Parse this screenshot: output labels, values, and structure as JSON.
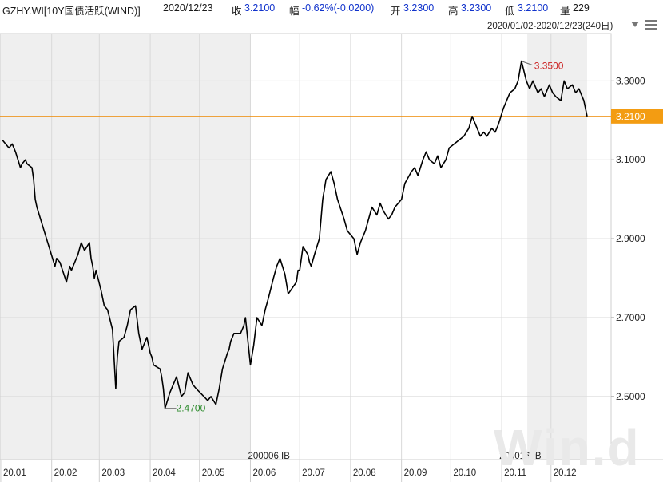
{
  "header": {
    "code": "GZHY.WI[10Y国债活跃(WIND)]",
    "date": "2020/12/23",
    "close_label": "收",
    "close_value": "3.2100",
    "change_label": "幅",
    "change_value": "-0.62%(-0.0200)",
    "open_label": "开",
    "open_value": "3.2300",
    "high_label": "高",
    "high_value": "3.2300",
    "low_label": "低",
    "low_value": "3.2100",
    "volume_label": "量",
    "volume_value": "229"
  },
  "range": {
    "text_main": "2020/01/02-2020/12/23",
    "text_count": "(240日)"
  },
  "watermark": "Win.d",
  "colors": {
    "line": "#000000",
    "current_line": "#ee8800",
    "current_label_bg": "#f39c12",
    "high_label": "#cc2222",
    "low_label": "#2a8a2a",
    "shade": "#efefef",
    "grid": "#d9d9d9"
  },
  "icons": [
    "dropdown-icon",
    "menu-icon"
  ],
  "chart_data": {
    "type": "line",
    "title": "GZHY.WI[10Y国债活跃(WIND)]",
    "x_range": [
      "2020/01/02",
      "2020/12/23"
    ],
    "ylim": [
      2.34,
      3.42
    ],
    "y_ticks": [
      "3.3000",
      "3.1000",
      "2.9000",
      "2.7000",
      "2.5000"
    ],
    "x_ticks": [
      "20.01",
      "20.02",
      "20.03",
      "20.04",
      "20.05",
      "20.06",
      "20.07",
      "20.08",
      "20.09",
      "20.10",
      "20.11",
      "20.12"
    ],
    "grid": true,
    "current_value": "3.2100",
    "max_label": "3.3500",
    "min_label": "2.4700",
    "contract_labels": [
      {
        "x": "2020-06",
        "text": "200006.IB"
      },
      {
        "x": "2020-11",
        "text": "200016.IB"
      }
    ],
    "shaded_periods": [
      [
        "2020-01-02",
        "2020-06-01"
      ],
      [
        "2020-11-18",
        "2020-12-23"
      ]
    ],
    "series": [
      {
        "x": [
          "2020-01-02",
          "2020-01-06",
          "2020-01-08",
          "2020-01-10",
          "2020-01-13",
          "2020-01-14",
          "2020-01-16",
          "2020-01-17",
          "2020-01-20",
          "2020-01-21",
          "2020-01-22",
          "2020-01-23",
          "2020-02-03",
          "2020-02-04",
          "2020-02-06",
          "2020-02-10",
          "2020-02-11",
          "2020-02-12",
          "2020-02-13",
          "2020-02-17",
          "2020-02-19",
          "2020-02-21",
          "2020-02-24",
          "2020-02-25",
          "2020-02-26",
          "2020-02-27",
          "2020-02-28",
          "2020-03-02",
          "2020-03-04",
          "2020-03-06",
          "2020-03-09",
          "2020-03-11",
          "2020-03-12",
          "2020-03-13",
          "2020-03-16",
          "2020-03-18",
          "2020-03-19",
          "2020-03-20",
          "2020-03-23",
          "2020-03-25",
          "2020-03-27",
          "2020-03-30",
          "2020-03-31",
          "2020-04-01",
          "2020-04-02",
          "2020-04-03",
          "2020-04-07",
          "2020-04-08",
          "2020-04-09",
          "2020-04-10",
          "2020-04-13",
          "2020-04-15",
          "2020-04-17",
          "2020-04-20",
          "2020-04-22",
          "2020-04-24",
          "2020-04-27",
          "2020-04-29",
          "2020-05-06",
          "2020-05-08",
          "2020-05-11",
          "2020-05-13",
          "2020-05-15",
          "2020-05-18",
          "2020-05-19",
          "2020-05-20",
          "2020-05-22",
          "2020-05-26",
          "2020-05-28",
          "2020-05-29",
          "2020-06-01",
          "2020-06-03",
          "2020-06-05",
          "2020-06-08",
          "2020-06-10",
          "2020-06-12",
          "2020-06-15",
          "2020-06-17",
          "2020-06-19",
          "2020-06-22",
          "2020-06-24",
          "2020-06-29",
          "2020-06-30",
          "2020-07-01",
          "2020-07-03",
          "2020-07-06",
          "2020-07-07",
          "2020-07-08",
          "2020-07-10",
          "2020-07-13",
          "2020-07-15",
          "2020-07-17",
          "2020-07-20",
          "2020-07-22",
          "2020-07-24",
          "2020-07-28",
          "2020-07-30",
          "2020-08-03",
          "2020-08-05",
          "2020-08-07",
          "2020-08-10",
          "2020-08-12",
          "2020-08-14",
          "2020-08-17",
          "2020-08-19",
          "2020-08-21",
          "2020-08-24",
          "2020-08-26",
          "2020-08-28",
          "2020-09-01",
          "2020-09-03",
          "2020-09-07",
          "2020-09-09",
          "2020-09-11",
          "2020-09-14",
          "2020-09-16",
          "2020-09-18",
          "2020-09-21",
          "2020-09-23",
          "2020-09-25",
          "2020-09-28",
          "2020-09-30",
          "2020-10-09",
          "2020-10-12",
          "2020-10-14",
          "2020-10-16",
          "2020-10-19",
          "2020-10-21",
          "2020-10-23",
          "2020-10-26",
          "2020-10-28",
          "2020-10-30",
          "2020-11-02",
          "2020-11-04",
          "2020-11-06",
          "2020-11-09",
          "2020-11-11",
          "2020-11-13",
          "2020-11-16",
          "2020-11-18",
          "2020-11-20",
          "2020-11-23",
          "2020-11-25",
          "2020-11-27",
          "2020-11-30",
          "2020-12-02",
          "2020-12-04",
          "2020-12-07",
          "2020-12-09",
          "2020-12-11",
          "2020-12-14",
          "2020-12-16",
          "2020-12-18",
          "2020-12-21",
          "2020-12-23"
        ],
        "values": [
          3.15,
          3.13,
          3.14,
          3.12,
          3.08,
          3.09,
          3.1,
          3.09,
          3.08,
          3.05,
          3.0,
          2.98,
          2.83,
          2.85,
          2.84,
          2.79,
          2.81,
          2.83,
          2.82,
          2.86,
          2.89,
          2.87,
          2.89,
          2.85,
          2.83,
          2.8,
          2.82,
          2.77,
          2.73,
          2.72,
          2.67,
          2.52,
          2.6,
          2.64,
          2.65,
          2.68,
          2.7,
          2.72,
          2.73,
          2.66,
          2.62,
          2.65,
          2.63,
          2.61,
          2.6,
          2.58,
          2.57,
          2.55,
          2.52,
          2.47,
          2.51,
          2.53,
          2.55,
          2.5,
          2.51,
          2.56,
          2.53,
          2.52,
          2.49,
          2.5,
          2.48,
          2.52,
          2.57,
          2.61,
          2.62,
          2.64,
          2.66,
          2.66,
          2.68,
          2.7,
          2.58,
          2.63,
          2.7,
          2.68,
          2.72,
          2.75,
          2.8,
          2.83,
          2.85,
          2.81,
          2.76,
          2.79,
          2.82,
          2.82,
          2.88,
          2.86,
          2.84,
          2.83,
          2.86,
          2.9,
          3.0,
          3.05,
          3.07,
          3.04,
          3.0,
          2.95,
          2.92,
          2.9,
          2.86,
          2.89,
          2.92,
          2.95,
          2.98,
          2.96,
          2.99,
          2.97,
          2.95,
          2.96,
          2.98,
          3.0,
          3.04,
          3.07,
          3.08,
          3.06,
          3.1,
          3.12,
          3.1,
          3.09,
          3.11,
          3.08,
          3.1,
          3.13,
          3.16,
          3.18,
          3.21,
          3.19,
          3.16,
          3.17,
          3.16,
          3.18,
          3.17,
          3.19,
          3.23,
          3.25,
          3.27,
          3.28,
          3.3,
          3.35,
          3.3,
          3.28,
          3.3,
          3.27,
          3.28,
          3.26,
          3.29,
          3.27,
          3.26,
          3.25,
          3.3,
          3.28,
          3.29,
          3.27,
          3.28,
          3.25,
          3.21
        ]
      }
    ]
  }
}
